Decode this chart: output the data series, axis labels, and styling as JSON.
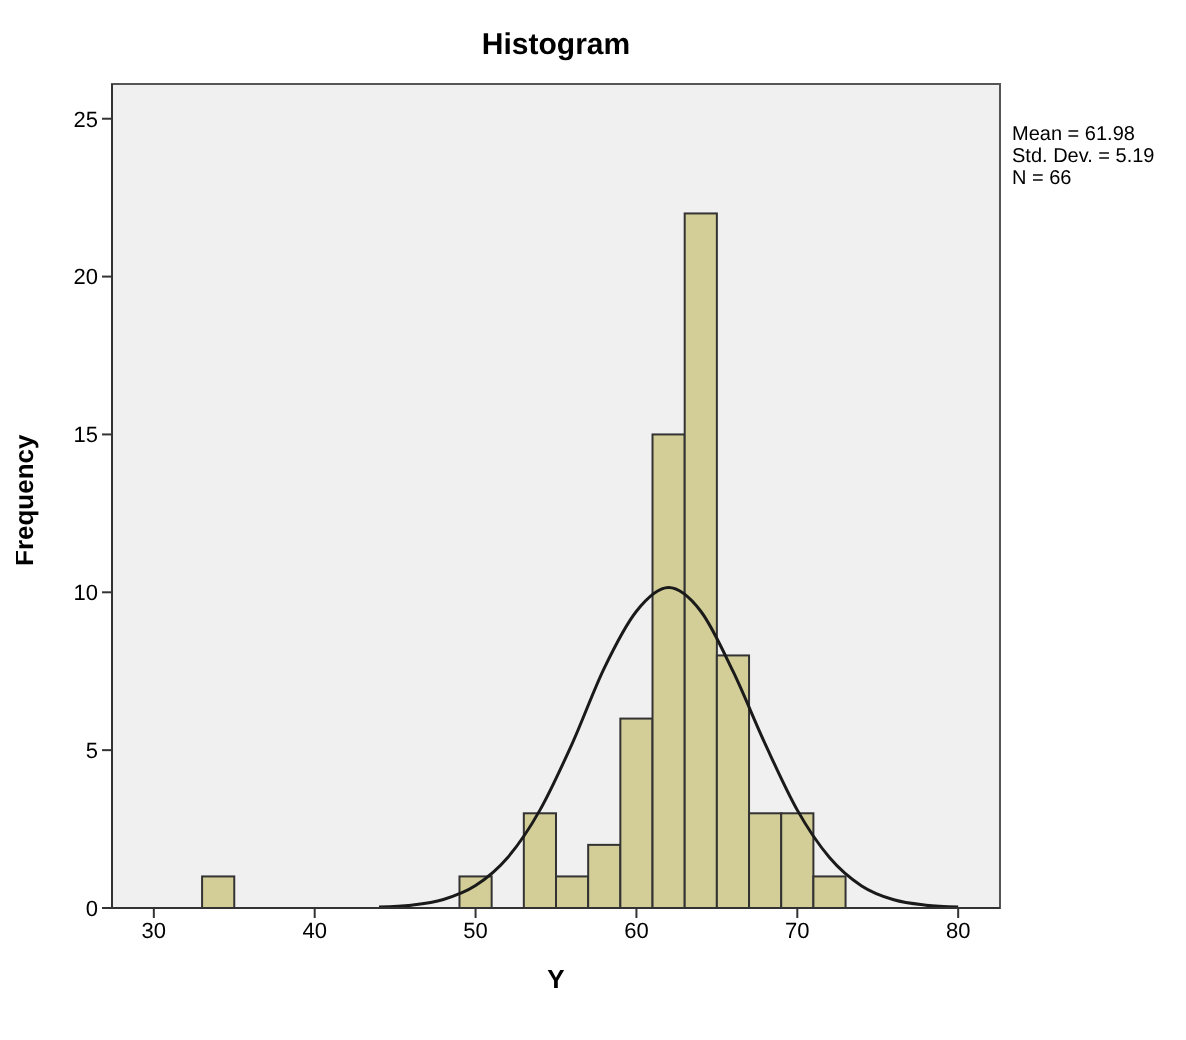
{
  "chart_data": {
    "type": "histogram",
    "title": "Histogram",
    "xlabel": "Y",
    "ylabel": "Frequency",
    "bins": [
      33,
      35,
      37,
      39,
      41,
      43,
      45,
      47,
      49,
      51,
      53,
      55,
      57,
      59,
      61,
      63,
      65,
      67,
      69,
      71,
      73
    ],
    "values": [
      1,
      0,
      0,
      0,
      0,
      0,
      0,
      0,
      1,
      0,
      3,
      1,
      2,
      6,
      15,
      22,
      8,
      3,
      3,
      1
    ],
    "color": "#d3ce98",
    "series": [
      {
        "type": "line",
        "color": "#1a1a1a",
        "x": [
          44,
          46,
          48,
          50,
          52,
          54,
          56,
          58,
          60,
          62,
          64,
          66,
          68,
          70,
          72,
          74,
          76,
          78,
          80
        ],
        "values": [
          0.03,
          0.09,
          0.27,
          0.71,
          1.6,
          3.1,
          5.2,
          7.6,
          9.4,
          10.15,
          9.4,
          7.5,
          5.2,
          3.1,
          1.6,
          0.7,
          0.26,
          0.09,
          0.03
        ]
      }
    ],
    "xlim": [
      27.4,
      82.6
    ],
    "xticks": [
      30,
      40,
      50,
      60,
      70,
      80
    ],
    "ylim": [
      0,
      26.1
    ],
    "yticks": [
      0,
      5,
      10,
      15,
      20,
      25
    ],
    "annotations": [
      "Mean = 61.98",
      "Std. Dev. = 5.19",
      "N = 66"
    ],
    "grid": false,
    "marker": "none"
  }
}
